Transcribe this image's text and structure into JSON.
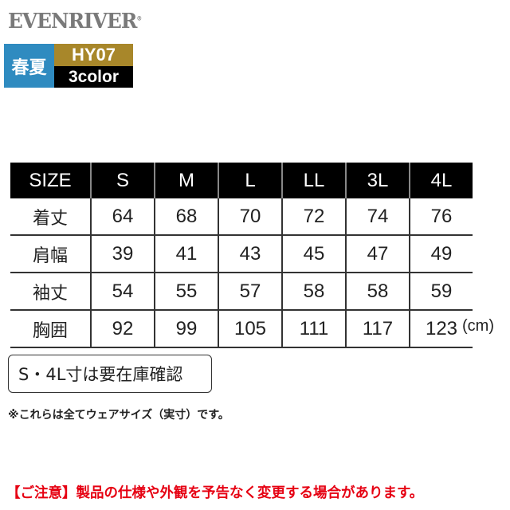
{
  "brand": {
    "logo": "EVENRIVER",
    "season": "春夏",
    "code": "HY07",
    "colors": "3color"
  },
  "table": {
    "headers": [
      "SIZE",
      "S",
      "M",
      "L",
      "LL",
      "3L",
      "4L"
    ],
    "rows": [
      {
        "label": "着丈",
        "values": [
          "64",
          "68",
          "70",
          "72",
          "74",
          "76"
        ]
      },
      {
        "label": "肩幅",
        "values": [
          "39",
          "41",
          "43",
          "45",
          "47",
          "49"
        ]
      },
      {
        "label": "袖丈",
        "values": [
          "54",
          "55",
          "57",
          "58",
          "58",
          "59"
        ]
      },
      {
        "label": "胸囲",
        "values": [
          "92",
          "99",
          "105",
          "111",
          "117",
          "123"
        ]
      }
    ],
    "unit": "(cm)"
  },
  "stock_note": "S・4L寸は要在庫確認",
  "size_note": "※これらは全てウェアサイズ（実寸）です。",
  "warning": "【ご注意】製品の仕様や外観を予告なく変更する場合があります。",
  "colors": {
    "season_bg": "#2f8bc0",
    "code_bg": "#a8872a",
    "warning": "#e60012"
  }
}
